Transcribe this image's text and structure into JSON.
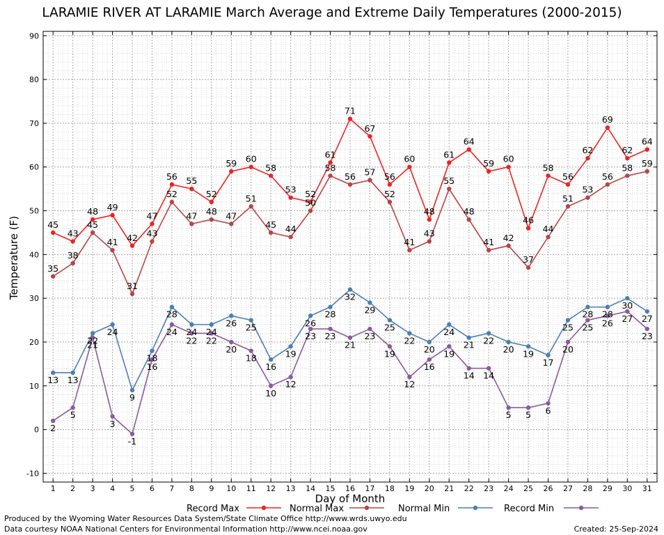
{
  "chart_data": {
    "type": "line",
    "title": "LARAMIE RIVER AT LARAMIE March Average and Extreme Daily Temperatures (2000-2015)",
    "xlabel": "Day of Month",
    "ylabel": "Temperature (F)",
    "x": [
      1,
      2,
      3,
      4,
      5,
      6,
      7,
      8,
      9,
      10,
      11,
      12,
      13,
      14,
      15,
      16,
      17,
      18,
      19,
      20,
      21,
      22,
      23,
      24,
      25,
      26,
      27,
      28,
      29,
      30,
      31
    ],
    "xlim": [
      0.5,
      31.5
    ],
    "ylim": [
      -12,
      91
    ],
    "yticks": [
      -10,
      0,
      10,
      20,
      30,
      40,
      50,
      60,
      70,
      80,
      90
    ],
    "grid": true,
    "legend": "bottom",
    "series": [
      {
        "name": "Record Max",
        "color": "#ee2222",
        "values": [
          45,
          43,
          48,
          49,
          42,
          47,
          56,
          55,
          52,
          59,
          60,
          58,
          53,
          52,
          61,
          71,
          67,
          56,
          60,
          48,
          61,
          64,
          59,
          60,
          46,
          58,
          56,
          62,
          69,
          62,
          64
        ]
      },
      {
        "name": "Normal Max",
        "color": "#b84444",
        "values": [
          35,
          38,
          45,
          41,
          31,
          43,
          52,
          47,
          48,
          47,
          51,
          45,
          44,
          50,
          58,
          56,
          57,
          52,
          41,
          43,
          55,
          48,
          41,
          42,
          37,
          44,
          51,
          53,
          56,
          58,
          59
        ]
      },
      {
        "name": "Normal Min",
        "color": "#4a7fb5",
        "values": [
          13,
          13,
          22,
          24,
          9,
          18,
          28,
          24,
          24,
          26,
          25,
          16,
          19,
          26,
          28,
          32,
          29,
          25,
          22,
          20,
          24,
          21,
          22,
          20,
          19,
          17,
          25,
          28,
          28,
          30,
          27
        ]
      },
      {
        "name": "Record Min",
        "color": "#8a5a9e",
        "values": [
          2,
          5,
          21,
          3,
          -1,
          16,
          24,
          22,
          22,
          20,
          18,
          10,
          12,
          23,
          23,
          21,
          23,
          19,
          12,
          16,
          19,
          14,
          14,
          5,
          5,
          6,
          20,
          25,
          26,
          27,
          23
        ]
      }
    ]
  },
  "footer": {
    "left_line1": "Produced by the Wyoming Water Resources Data System/State Climate Office http://www.wrds.uwyo.edu",
    "left_line2": "Data courtesy NOAA National Centers for Environmental Information http://www.ncei.noaa.gov",
    "created": "Created:  25-Sep-2024"
  }
}
